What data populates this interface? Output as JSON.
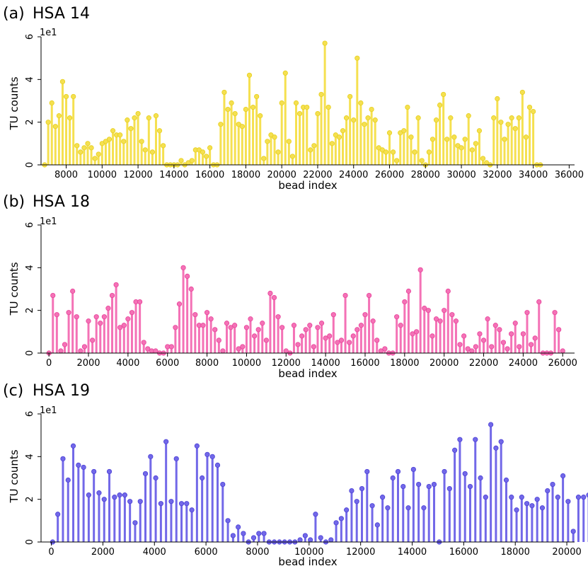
{
  "chart_data": [
    {
      "type": "bar",
      "panel": "(a)",
      "title": "HSA 14",
      "xlabel": "bead index",
      "ylabel": "TU counts",
      "y_scale_label": "1e1",
      "xlim": [
        6600,
        36300
      ],
      "ylim": [
        0,
        6
      ],
      "xticks": [
        8000,
        10000,
        12000,
        14000,
        16000,
        18000,
        20000,
        22000,
        24000,
        26000,
        28000,
        30000,
        32000,
        34000,
        36000
      ],
      "yticks": [
        0,
        2,
        4,
        6
      ],
      "color": "#f5e050",
      "marker_color": "#e6cf1e",
      "x_start": 6800,
      "x_step": 200,
      "values": [
        0,
        2,
        2.9,
        1.8,
        2.3,
        3.9,
        3.2,
        2.2,
        3.2,
        0.9,
        0.6,
        0.8,
        1,
        0.8,
        0.3,
        0.5,
        1,
        1.1,
        1.2,
        1.6,
        1.4,
        1.4,
        1.1,
        2.1,
        1.7,
        2.2,
        2.4,
        1.1,
        0.7,
        2.2,
        0.6,
        2.3,
        1.6,
        0.9,
        0,
        0,
        0,
        0,
        0.2,
        0,
        0.1,
        0.2,
        0.7,
        0.7,
        0.6,
        0.4,
        0.8,
        0,
        0,
        1.9,
        3.4,
        2.6,
        2.9,
        2.4,
        1.9,
        1.8,
        2.6,
        4.2,
        2.7,
        3.2,
        2.3,
        0.3,
        1.1,
        1.4,
        1.3,
        0.6,
        2.9,
        4.3,
        1.1,
        0.4,
        2.9,
        2.4,
        2.7,
        2.7,
        0.7,
        0.9,
        2.4,
        3.3,
        5.7,
        2.7,
        1,
        1.4,
        1.3,
        1.6,
        2.2,
        3.2,
        2.1,
        5,
        2.9,
        1.9,
        2.2,
        2.6,
        2.1,
        0.8,
        0.7,
        0.6,
        1.5,
        0.6,
        0.2,
        1.5,
        1.6,
        2.7,
        1.3,
        0.6,
        2.2,
        0.2,
        0,
        0.6,
        1.2,
        2.1,
        2.8,
        3.3,
        1.2,
        2.2,
        1.3,
        0.9,
        0.8,
        1.2,
        2.3,
        0.7,
        1,
        1.6,
        0.3,
        0.1,
        0,
        2.2,
        3.1,
        2,
        1.2,
        1.9,
        2.2,
        1.7,
        2.2,
        3.4,
        1.3,
        2.7,
        2.5,
        0,
        0
      ]
    },
    {
      "type": "bar",
      "panel": "(b)",
      "title": "HSA 18",
      "xlabel": "bead index",
      "ylabel": "TU counts",
      "y_scale_label": "1e1",
      "xlim": [
        -400,
        26600
      ],
      "ylim": [
        0,
        6
      ],
      "xticks": [
        0,
        2000,
        4000,
        6000,
        8000,
        10000,
        12000,
        14000,
        16000,
        18000,
        20000,
        22000,
        24000,
        26000
      ],
      "yticks": [
        0,
        2,
        4,
        6
      ],
      "color": "#f472b6",
      "marker_color": "#e8429a",
      "x_start": 0,
      "x_step": 200,
      "values": [
        0,
        2.7,
        1.8,
        0.1,
        0.4,
        1.9,
        2.9,
        1.7,
        0.1,
        0.3,
        1.5,
        0.6,
        1.7,
        1.4,
        1.7,
        2.1,
        2.7,
        3.2,
        1.2,
        1.3,
        1.6,
        1.9,
        2.4,
        2.4,
        0.5,
        0.2,
        0.1,
        0.1,
        0,
        0,
        0.3,
        0.3,
        1.2,
        2.3,
        4,
        3.6,
        3,
        1.8,
        1.3,
        1.3,
        1.9,
        1.6,
        1.1,
        0.6,
        0.1,
        1.4,
        1.2,
        1.3,
        0.2,
        0.3,
        1.2,
        1.6,
        0.8,
        1.1,
        1.4,
        0.6,
        2.8,
        2.6,
        1.7,
        1.2,
        0.1,
        0,
        1.3,
        0.4,
        0.8,
        1.1,
        1.3,
        0.3,
        1.2,
        1.4,
        0.7,
        0.8,
        1.8,
        0.5,
        0.6,
        2.7,
        0.5,
        0.8,
        1.1,
        1.3,
        1.8,
        2.7,
        1.5,
        0.6,
        0.1,
        0.2,
        0,
        0,
        1.7,
        1.3,
        2.4,
        2.9,
        0.9,
        1,
        3.9,
        2.1,
        2,
        0.8,
        1.6,
        1.5,
        2,
        2.9,
        1.8,
        1.5,
        0.4,
        0.8,
        0.2,
        0.1,
        0.3,
        0.9,
        0.6,
        1.6,
        0.3,
        1.3,
        1.1,
        0.5,
        0.2,
        0.9,
        1.4,
        0.3,
        0.9,
        1.9,
        0.4,
        0.7,
        2.4,
        0,
        0,
        0,
        1.9,
        1.1,
        0.1
      ]
    },
    {
      "type": "bar",
      "panel": "(c)",
      "title": "HSA 19",
      "xlabel": "bead index",
      "ylabel": "TU counts",
      "y_scale_label": "1e1",
      "xlim": [
        -400,
        20300
      ],
      "ylim": [
        0,
        6
      ],
      "xticks": [
        0,
        2000,
        4000,
        6000,
        8000,
        10000,
        12000,
        14000,
        16000,
        18000,
        20000
      ],
      "yticks": [
        0,
        2,
        4,
        6
      ],
      "color": "#7268e8",
      "marker_color": "#4a3fd6",
      "x_start": 50,
      "x_step": 200,
      "values": [
        0,
        1.3,
        3.9,
        2.9,
        4.5,
        3.6,
        3.5,
        2.2,
        3.3,
        2.3,
        2,
        3.3,
        2.1,
        2.2,
        2.2,
        1.9,
        0.9,
        1.9,
        3.2,
        4,
        3,
        1.8,
        4.7,
        1.9,
        3.9,
        1.8,
        1.8,
        1.5,
        4.5,
        3,
        4.1,
        4,
        3.6,
        2.7,
        1,
        0.3,
        0.7,
        0.4,
        0,
        0.2,
        0.4,
        0.4,
        0,
        0,
        0,
        0,
        0,
        0,
        0.1,
        0.3,
        0.1,
        1.3,
        0.2,
        0,
        0.1,
        0.9,
        1.1,
        1.5,
        2.4,
        1.9,
        2.5,
        3.3,
        1.7,
        0.8,
        2.1,
        1.6,
        3,
        3.3,
        2.6,
        1.6,
        3.4,
        2.7,
        1.6,
        2.6,
        2.7,
        0,
        3.3,
        2.5,
        4.3,
        4.8,
        3.2,
        2.6,
        4.8,
        3,
        2.1,
        5.5,
        4.4,
        4.7,
        2.9,
        2.1,
        1.5,
        2.1,
        1.8,
        1.7,
        2,
        1.6,
        2.4,
        2.7,
        2.1,
        3.1,
        1.9,
        0.5,
        2.1,
        2.1,
        2.2
      ]
    }
  ]
}
